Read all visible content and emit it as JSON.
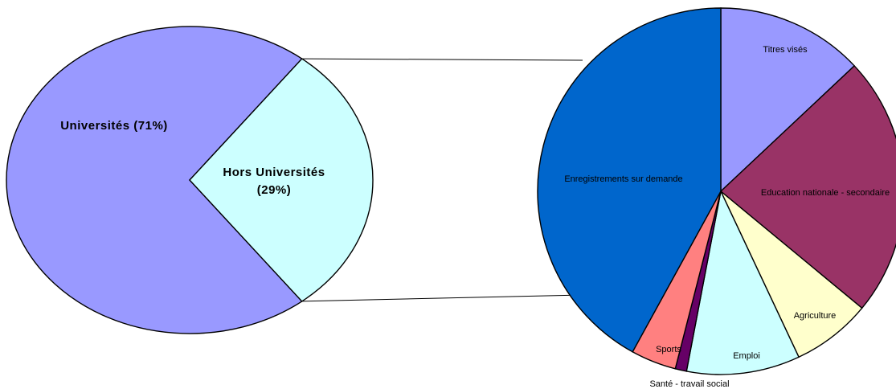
{
  "chart_data": [
    {
      "type": "pie",
      "title": "",
      "slices": [
        {
          "label": "Universités (71%)",
          "value": 71,
          "color": "#9999ff"
        },
        {
          "label": "Hors Universités",
          "label2": "(29%)",
          "value": 29,
          "color": "#ccffff"
        }
      ]
    },
    {
      "type": "pie",
      "title": "",
      "slices": [
        {
          "label": "Titres visés",
          "value": 13,
          "color": "#9999ff"
        },
        {
          "label": "Education nationale - secondaire",
          "value": 23,
          "color": "#993366"
        },
        {
          "label": "Agriculture",
          "value": 7,
          "color": "#ffffcc"
        },
        {
          "label": "Emploi",
          "value": 10,
          "color": "#ccffff"
        },
        {
          "label": "Santé - travail social",
          "value": 1,
          "color": "#660066"
        },
        {
          "label": "Sports",
          "value": 4,
          "color": "#ff8080"
        },
        {
          "label": "Enregistrements sur demande",
          "value": 42,
          "color": "#0066cc"
        }
      ]
    }
  ]
}
